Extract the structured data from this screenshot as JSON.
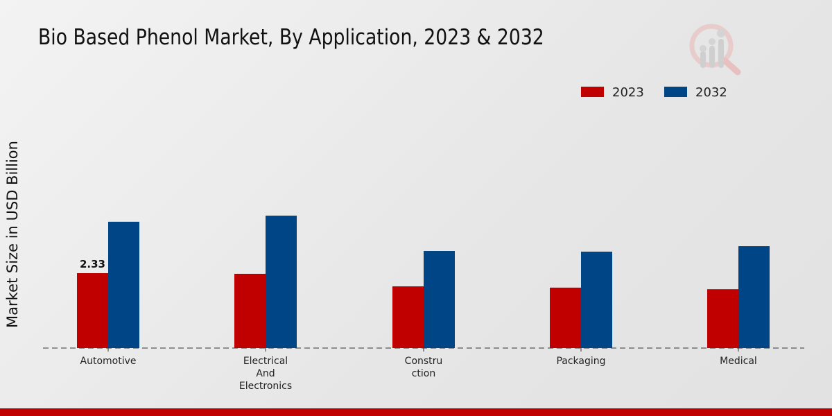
{
  "chart_data": {
    "type": "bar",
    "title": "Bio Based Phenol Market, By Application, 2023 & 2032",
    "xlabel": "",
    "ylabel": "Market Size in USD Billion",
    "categories": [
      "Automotive",
      "Electrical And Electronics",
      "Construction",
      "Packaging",
      "Medical"
    ],
    "category_label_lines": [
      [
        "Automotive"
      ],
      [
        "Electrical",
        "And",
        "Electronics"
      ],
      [
        "Constru",
        "ction"
      ],
      [
        "Packaging"
      ],
      [
        "Medical"
      ]
    ],
    "series": [
      {
        "name": "2023",
        "color": "#c00000",
        "values": [
          2.33,
          2.31,
          1.92,
          1.88,
          1.83
        ]
      },
      {
        "name": "2032",
        "color": "#004586",
        "values": [
          3.93,
          4.12,
          3.02,
          3.0,
          3.17
        ]
      }
    ],
    "data_labels": [
      {
        "series": "2023",
        "category": "Automotive",
        "text": "2.33"
      }
    ],
    "ylim": [
      0,
      6.5
    ],
    "grid": false,
    "legend_position": "top-right",
    "baseline_style": "dashed"
  },
  "logo": {
    "name": "market-research-logo-icon"
  },
  "footer": {
    "color": "#c00000"
  }
}
